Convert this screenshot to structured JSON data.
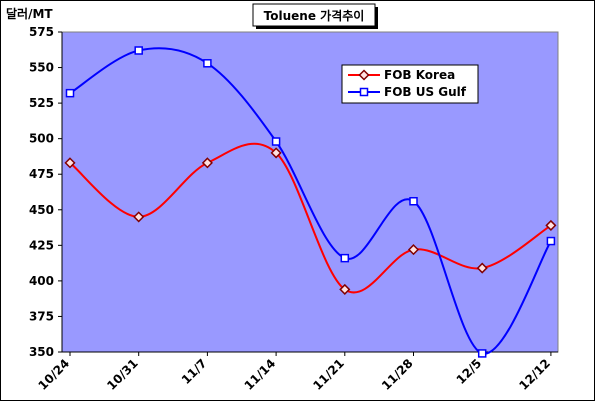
{
  "chart_data": {
    "type": "line",
    "title": "Toluene 가격추이",
    "ylabel": "달러/MT",
    "xlabel": "",
    "categories": [
      "10/24",
      "10/31",
      "11/7",
      "11/14",
      "11/21",
      "11/28",
      "12/5",
      "12/12"
    ],
    "ylim": [
      350,
      575
    ],
    "yticks": [
      350,
      375,
      400,
      425,
      450,
      475,
      500,
      525,
      550,
      575
    ],
    "grid": false,
    "legend_position": "top-right",
    "series": [
      {
        "name": "FOB Korea",
        "values": [
          483,
          445,
          483,
          490,
          394,
          422,
          409,
          439
        ],
        "color": "#ff0000",
        "marker": "diamond"
      },
      {
        "name": "FOB US Gulf",
        "values": [
          532,
          562,
          553,
          498,
          416,
          456,
          349,
          428
        ],
        "color": "#0000ff",
        "marker": "square"
      }
    ],
    "plot_background": "#9999ff"
  }
}
